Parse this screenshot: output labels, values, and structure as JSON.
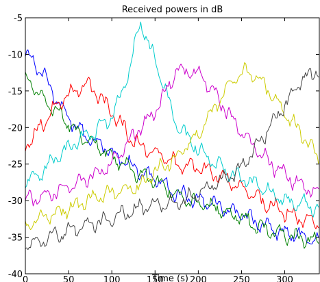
{
  "chart_data": {
    "type": "line",
    "title": "Received powers in dB",
    "xlabel": "Time (s)",
    "ylabel": "",
    "xlim": [
      0,
      340
    ],
    "ylim": [
      -40,
      -5
    ],
    "xticks": [
      0,
      50,
      100,
      150,
      200,
      250,
      300
    ],
    "yticks": [
      -5,
      -10,
      -15,
      -20,
      -25,
      -30,
      -35,
      -40
    ],
    "grid": false,
    "legend": "none",
    "x": [
      0,
      20,
      40,
      60,
      70,
      80,
      100,
      120,
      133,
      150,
      175,
      200,
      220,
      240,
      253,
      260,
      280,
      300,
      320,
      340
    ],
    "series": [
      {
        "color": "#0000ff",
        "values": [
          -10,
          -12.5,
          -17,
          -20,
          -21,
          -21.7,
          -23.5,
          -25,
          -26,
          -27,
          -29,
          -30,
          -30.5,
          -31.5,
          -32,
          -32.5,
          -33.5,
          -34.5,
          -35,
          -35.5
        ]
      },
      {
        "color": "#008000",
        "values": [
          -13,
          -16,
          -18.5,
          -20.5,
          -21.5,
          -22.3,
          -24,
          -25.5,
          -26.5,
          -27.3,
          -29.3,
          -30.3,
          -31,
          -32,
          -32.5,
          -33,
          -34,
          -34.7,
          -35.2,
          -35.7
        ]
      },
      {
        "color": "#ff0000",
        "values": [
          -22.5,
          -19.5,
          -16.5,
          -14.7,
          -14.3,
          -14.8,
          -18,
          -21,
          -22.5,
          -23.5,
          -25,
          -25.5,
          -26.5,
          -27.5,
          -28.5,
          -29,
          -30.5,
          -31.5,
          -32.5,
          -33
        ]
      },
      {
        "color": "#00cccc",
        "values": [
          -27.5,
          -26,
          -23.5,
          -22,
          -21,
          -20.8,
          -18.5,
          -12.5,
          -5.5,
          -11,
          -19.5,
          -23,
          -25,
          -26.5,
          -27,
          -27.5,
          -28.5,
          -30,
          -30.5,
          -31
        ]
      },
      {
        "color": "#cc00cc",
        "values": [
          -30,
          -29.5,
          -28.5,
          -27.5,
          -27,
          -26.5,
          -25,
          -22,
          -20,
          -18,
          -12,
          -12.5,
          -15.5,
          -19,
          -21,
          -22,
          -24.5,
          -26.5,
          -28,
          -29
        ]
      },
      {
        "color": "#cccc00",
        "values": [
          -33.5,
          -32.5,
          -31.5,
          -30.5,
          -30,
          -29.5,
          -29,
          -28.5,
          -28,
          -26,
          -24,
          -21,
          -17,
          -13.5,
          -12.2,
          -12.5,
          -14.5,
          -18,
          -21,
          -24.5
        ]
      },
      {
        "color": "#444444",
        "values": [
          -36,
          -35.5,
          -34.5,
          -34,
          -33.5,
          -33,
          -32.5,
          -31.5,
          -31,
          -30.5,
          -30.5,
          -29,
          -27.5,
          -26.5,
          -25,
          -24,
          -20.5,
          -17,
          -13.5,
          -12
        ]
      }
    ]
  }
}
